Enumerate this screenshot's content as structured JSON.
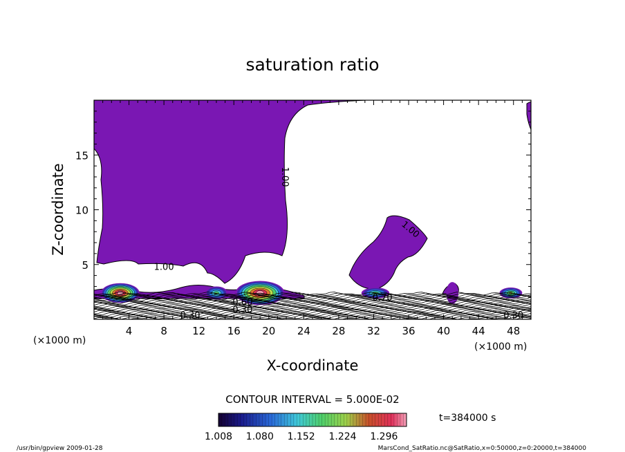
{
  "chart_data": {
    "type": "contour",
    "title": "saturation ratio",
    "xlabel": "X-coordinate",
    "ylabel": "Z-coordinate",
    "x_unit_left": "(×1000 m)",
    "x_unit_right": "(×1000 m)",
    "xlim": [
      0,
      50
    ],
    "ylim": [
      0,
      20
    ],
    "x_ticks": [
      "4",
      "8",
      "12",
      "16",
      "20",
      "24",
      "28",
      "32",
      "36",
      "40",
      "44",
      "48"
    ],
    "y_ticks": [
      "5",
      "10",
      "15"
    ],
    "contour_interval_text": "CONTOUR INTERVAL = 5.000E-02",
    "time_text": "t=384000 s",
    "colorbar_labels": [
      "1.008",
      "1.080",
      "1.152",
      "1.224",
      "1.296"
    ],
    "colorbar_range": [
      1.008,
      1.296
    ],
    "contour_labels": [
      {
        "text": "1.00",
        "x": 8.0,
        "z": 4.5,
        "rot": 0
      },
      {
        "text": "1.00",
        "x": 21.5,
        "z": 13.0,
        "rot": 90
      },
      {
        "text": "1.00",
        "x": 36.0,
        "z": 8.0,
        "rot": 40
      },
      {
        "text": "0.60",
        "x": 17.0,
        "z": 1.3,
        "rot": 0
      },
      {
        "text": "0.30",
        "x": 17.0,
        "z": 0.6,
        "rot": 0
      },
      {
        "text": "0.70",
        "x": 33.0,
        "z": 1.7,
        "rot": 0
      },
      {
        "text": "0.30",
        "x": 11.0,
        "z": 0.1,
        "rot": 0
      },
      {
        "text": "0.30",
        "x": 48.0,
        "z": 0.1,
        "rot": 0
      }
    ],
    "supersaturated_cores": [
      {
        "x_center": 3.0,
        "z_base": 2.4,
        "half_width": 2.2,
        "height": 0.9,
        "peak": 1.3
      },
      {
        "x_center": 19.0,
        "z_base": 2.4,
        "half_width": 2.8,
        "height": 1.1,
        "peak": 1.3
      },
      {
        "x_center": 14.0,
        "z_base": 2.4,
        "half_width": 1.3,
        "height": 0.6,
        "peak": 1.12
      },
      {
        "x_center": 32.2,
        "z_base": 2.4,
        "half_width": 1.6,
        "height": 0.5,
        "peak": 1.12
      },
      {
        "x_center": 47.7,
        "z_base": 2.4,
        "half_width": 1.3,
        "height": 0.5,
        "peak": 1.15
      },
      {
        "x_center": 41.0,
        "z_base": 2.4,
        "half_width": 0.7,
        "height": 1.0,
        "peak": 1.01
      }
    ],
    "colors": {
      "region": "#7a17b3",
      "line": "#000000"
    }
  },
  "footer": {
    "left": "/usr/bin/gpview   2009-01-28",
    "right": "MarsCond_SatRatio.nc@SatRatio,x=0:50000,z=0:20000,t=384000"
  }
}
